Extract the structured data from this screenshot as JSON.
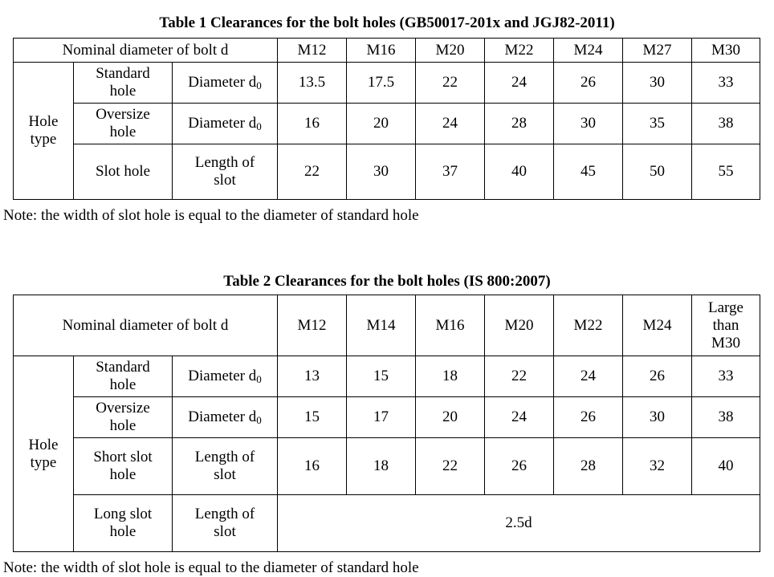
{
  "table1": {
    "title": "Table 1 Clearances for the bolt holes (GB50017-201x and JGJ82-2011)",
    "header_label": "Nominal diameter of bolt d",
    "sizes": [
      "M12",
      "M16",
      "M20",
      "M22",
      "M24",
      "M27",
      "M30"
    ],
    "hole_type_label": "Hole type",
    "rows": [
      {
        "hole": "Standard hole",
        "param": "Diameter d",
        "sub": "0",
        "values": [
          "13.5",
          "17.5",
          "22",
          "24",
          "26",
          "30",
          "33"
        ]
      },
      {
        "hole": "Oversize hole",
        "param": "Diameter d",
        "sub": "0",
        "values": [
          "16",
          "20",
          "24",
          "28",
          "30",
          "35",
          "38"
        ]
      },
      {
        "hole": "Slot hole",
        "param": "Length of slot",
        "values": [
          "22",
          "30",
          "37",
          "40",
          "45",
          "50",
          "55"
        ]
      }
    ],
    "note": "Note: the width of slot hole is equal to the diameter of standard hole"
  },
  "table2": {
    "title": "Table 2 Clearances for the bolt holes (IS 800:2007)",
    "header_label": "Nominal diameter of bolt d",
    "sizes": [
      "M12",
      "M14",
      "M16",
      "M20",
      "M22",
      "M24",
      "Large than M30"
    ],
    "hole_type_label": "Hole type",
    "rows": [
      {
        "hole": "Standard hole",
        "param": "Diameter d",
        "sub": "0",
        "values": [
          "13",
          "15",
          "18",
          "22",
          "24",
          "26",
          "33"
        ]
      },
      {
        "hole": "Oversize hole",
        "param": "Diameter d",
        "sub": "0",
        "values": [
          "15",
          "17",
          "20",
          "24",
          "26",
          "30",
          "38"
        ]
      },
      {
        "hole": "Short slot hole",
        "param": "Length of slot",
        "values": [
          "16",
          "18",
          "22",
          "26",
          "28",
          "32",
          "40"
        ]
      },
      {
        "hole": "Long slot hole",
        "param": "Length of slot",
        "merged_value": "2.5d"
      }
    ],
    "note": "Note: the width of slot hole is equal to the diameter of standard hole"
  }
}
